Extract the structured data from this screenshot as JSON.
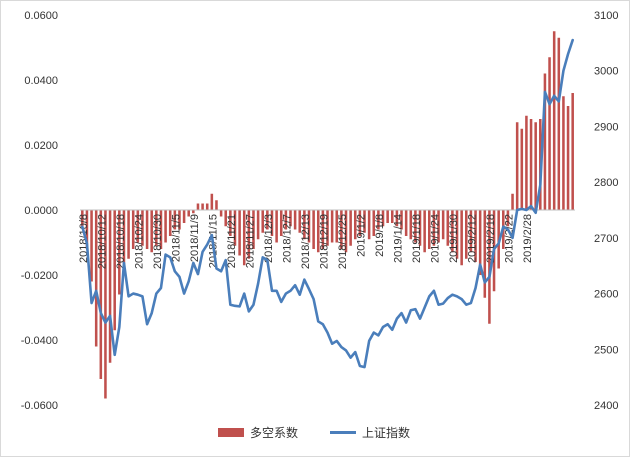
{
  "chart_data": {
    "type": "bar+line",
    "title": "",
    "legend_position": "bottom",
    "grid": false,
    "left_axis": {
      "min": -0.06,
      "max": 0.06,
      "ticks": [
        "0.0600",
        "0.0400",
        "0.0200",
        "0.0000",
        "-0.0200",
        "-0.0400",
        "-0.0600"
      ]
    },
    "right_axis": {
      "min": 2400,
      "max": 3100,
      "ticks": [
        "3100",
        "3000",
        "2900",
        "2800",
        "2700",
        "2600",
        "2500",
        "2400"
      ]
    },
    "x_tick_labels": [
      "2018/10/8",
      "2018/10/12",
      "2018/10/18",
      "2018/10/24",
      "2018/10/30",
      "2018/11/5",
      "2018/11/9",
      "2018/11/15",
      "2018/11/21",
      "2018/11/27",
      "2018/12/3",
      "2018/12/7",
      "2018/12/13",
      "2018/12/19",
      "2018/12/25",
      "2019/1/2",
      "2019/1/8",
      "2019/1/14",
      "2019/1/18",
      "2019/1/24",
      "2019/1/30",
      "2019/2/12",
      "2019/2/18",
      "2019/2/22",
      "2019/2/28"
    ],
    "series": [
      {
        "name": "多空系数",
        "type": "bar",
        "axis": "left",
        "color": "#c0504d",
        "values": [
          -0.005,
          -0.012,
          -0.022,
          -0.042,
          -0.052,
          -0.058,
          -0.047,
          -0.037,
          -0.026,
          -0.019,
          -0.015,
          -0.012,
          -0.01,
          -0.011,
          -0.012,
          -0.013,
          -0.011,
          -0.012,
          -0.01,
          -0.008,
          -0.006,
          -0.006,
          -0.004,
          -0.002,
          -0.001,
          0.002,
          0.002,
          0.002,
          0.005,
          0.003,
          -0.002,
          -0.005,
          -0.008,
          -0.011,
          -0.014,
          -0.017,
          -0.015,
          -0.012,
          -0.009,
          -0.007,
          -0.006,
          -0.008,
          -0.01,
          -0.008,
          -0.006,
          -0.005,
          -0.006,
          -0.007,
          -0.009,
          -0.01,
          -0.012,
          -0.013,
          -0.012,
          -0.011,
          -0.01,
          -0.01,
          -0.012,
          -0.013,
          -0.011,
          -0.009,
          -0.008,
          -0.007,
          -0.009,
          -0.008,
          -0.006,
          -0.005,
          -0.004,
          -0.004,
          -0.005,
          -0.006,
          -0.008,
          -0.009,
          -0.01,
          -0.011,
          -0.013,
          -0.012,
          -0.011,
          -0.01,
          -0.009,
          -0.011,
          -0.013,
          -0.015,
          -0.017,
          -0.015,
          -0.013,
          -0.016,
          -0.02,
          -0.027,
          -0.035,
          -0.025,
          -0.018,
          -0.012,
          -0.005,
          0.005,
          0.027,
          0.025,
          0.029,
          0.028,
          0.027,
          0.028,
          0.042,
          0.047,
          0.055,
          0.053,
          0.035,
          0.032,
          0.036
        ]
      },
      {
        "name": "上证指数",
        "type": "line",
        "axis": "right",
        "color": "#4a7ebb",
        "values": [
          2720,
          2690,
          2583,
          2605,
          2565,
          2548,
          2560,
          2490,
          2540,
          2655,
          2595,
          2600,
          2598,
          2595,
          2545,
          2565,
          2600,
          2610,
          2670,
          2665,
          2640,
          2630,
          2600,
          2622,
          2655,
          2635,
          2675,
          2688,
          2705,
          2645,
          2640,
          2660,
          2580,
          2578,
          2577,
          2600,
          2568,
          2580,
          2618,
          2665,
          2660,
          2605,
          2605,
          2585,
          2600,
          2605,
          2615,
          2598,
          2625,
          2608,
          2590,
          2550,
          2545,
          2530,
          2510,
          2515,
          2504,
          2498,
          2485,
          2495,
          2470,
          2468,
          2515,
          2530,
          2525,
          2540,
          2545,
          2535,
          2555,
          2565,
          2548,
          2570,
          2572,
          2555,
          2575,
          2595,
          2605,
          2580,
          2582,
          2592,
          2598,
          2595,
          2590,
          2580,
          2583,
          2610,
          2652,
          2620,
          2630,
          2680,
          2690,
          2720,
          2715,
          2700,
          2750,
          2752,
          2750,
          2757,
          2745,
          2795,
          2962,
          2940,
          2955,
          2945,
          3000,
          3030,
          3055
        ]
      }
    ]
  }
}
